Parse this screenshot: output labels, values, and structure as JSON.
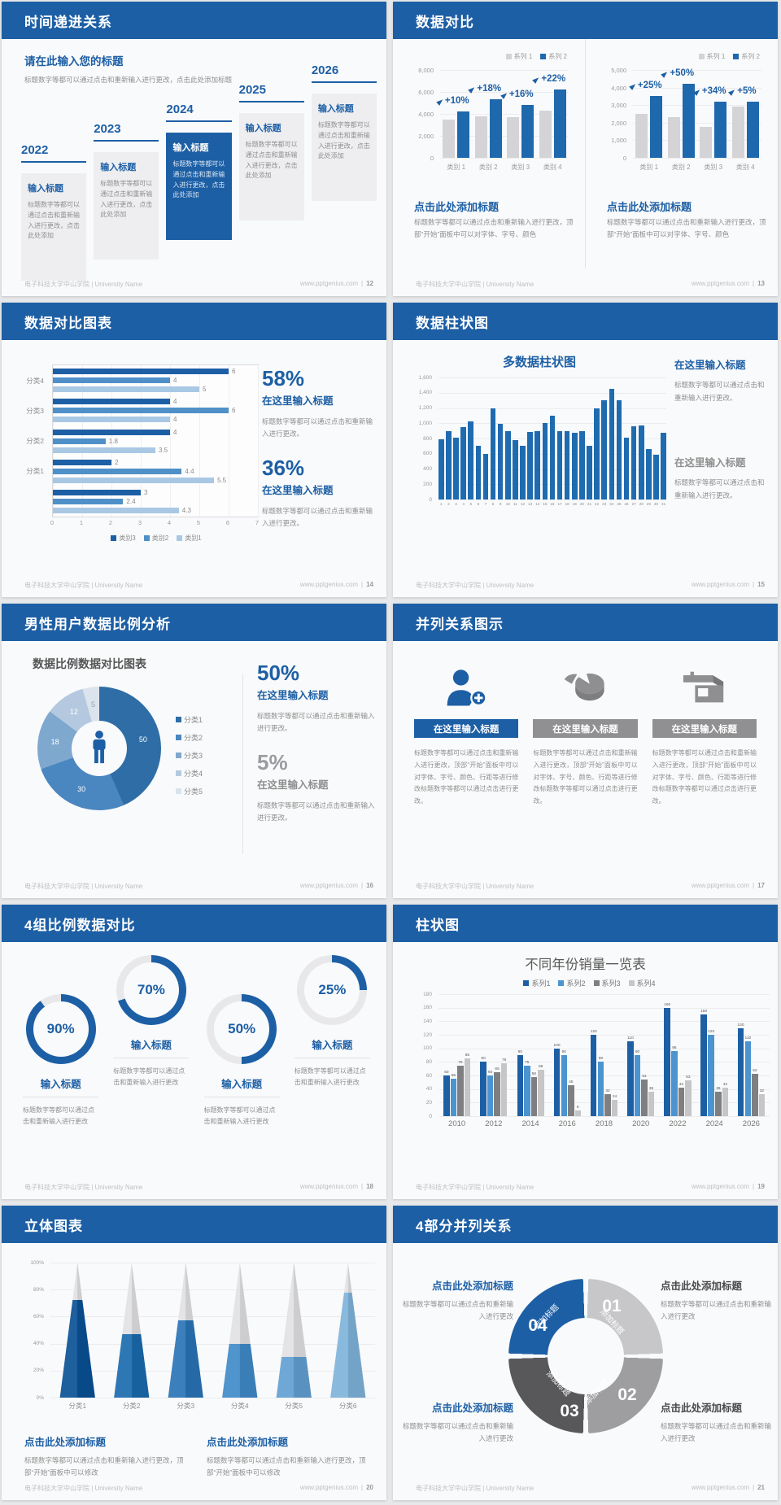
{
  "footer_left": "电子科技大学中山学院 | University Name",
  "footer_site": "www.pptgenius.com",
  "colors": {
    "header_blue": "#1d5fa5",
    "accent_blue": "#1e68ae",
    "bar_gray": "#d4d4d6",
    "text_gray": "#8f8f8f",
    "footer_gray": "#bfbfc2"
  },
  "slides": {
    "timeline": {
      "title": "时间递进关系",
      "page": "12",
      "intro_heading": "请在此输入您的标题",
      "intro_text": "标题数字等都可以通过点击和重新输入进行更改，点击此处添加标题",
      "box_title": "输入标题",
      "box_text": "标题数字等都可以通过点击和重新输入进行更改，点击此处添加",
      "years": [
        "2022",
        "2023",
        "2024",
        "2025",
        "2026"
      ],
      "highlight_index": 2
    },
    "compare": {
      "title": "数据对比",
      "page": "13",
      "block_heading": "点击此处添加标题",
      "block_text": "标题数字等都可以通过点击和重新输入进行更改，顶部“开始”面板中可以对字体、字号、颜色"
    },
    "hbar": {
      "title": "数据对比图表",
      "page": "14",
      "stats": [
        {
          "value": "58%",
          "label": "在这里输入标题",
          "text": "标题数字等都可以通过点击和重新输入进行更改。"
        },
        {
          "value": "36%",
          "label": "在这里输入标题",
          "text": "标题数字等都可以通过点击和重新输入进行更改。"
        }
      ]
    },
    "columns31": {
      "title": "数据柱状图",
      "page": "15",
      "blocks": [
        {
          "heading": "在这里输入标题",
          "text": "标题数字等都可以通过点击和重新输入进行更改。"
        },
        {
          "heading": "在这里输入标题",
          "text": "标题数字等都可以通过点击和重新输入进行更改。"
        }
      ]
    },
    "donut": {
      "title": "男性用户数据比例分析",
      "page": "16",
      "stats": [
        {
          "value": "50%",
          "label": "在这里输入标题",
          "text": "标题数字等都可以通过点击和重新输入进行更改。"
        },
        {
          "value": "5%",
          "label": "在这里输入标题",
          "text": "标题数字等都可以通过点击和重新输入进行更改。"
        }
      ]
    },
    "parallel3": {
      "title": "并列关系图示",
      "page": "17",
      "item_heading": "在这里输入标题",
      "item_text": "标题数字等都可以通过点击和重新输入进行更改，顶部“开始”面板中可以对字体、字号、颜色、行距等进行修改标题数字等都可以通过点击进行更改。",
      "icons": [
        "person-plus-icon",
        "pie-icon",
        "shop-icon"
      ]
    },
    "rings": {
      "title": "4组比例数据对比",
      "page": "18",
      "items": [
        {
          "pct_label": "90%",
          "heading": "输入标题",
          "text": "标题数字等都可以通过点击和重新输入进行更改"
        },
        {
          "pct_label": "70%",
          "heading": "输入标题",
          "text": "标题数字等都可以通过点击和重新输入进行更改"
        },
        {
          "pct_label": "50%",
          "heading": "输入标题",
          "text": "标题数字等都可以通过点击和重新输入进行更改"
        },
        {
          "pct_label": "25%",
          "heading": "输入标题",
          "text": "标题数字等都可以通过点击和重新输入进行更改"
        }
      ]
    },
    "grouped": {
      "title": "柱状图",
      "page": "19"
    },
    "pyramids": {
      "title": "立体图表",
      "page": "20",
      "blocks": [
        {
          "heading": "点击此处添加标题",
          "text": "标题数字等都可以通过点击和重新输入进行更改，顶部“开始”面板中可以修改"
        },
        {
          "heading": "点击此处添加标题",
          "text": "标题数字等都可以通过点击和重新输入进行更改，顶部“开始”面板中可以修改"
        }
      ]
    },
    "cycle4": {
      "title": "4部分并列关系",
      "page": "21",
      "numbers": [
        "01",
        "02",
        "03",
        "04"
      ],
      "segment_label": "添加标题",
      "blocks": [
        {
          "heading": "点击此处添加标题",
          "text": "标题数字等都可以通过点击和重新输入进行更改"
        },
        {
          "heading": "点击此处添加标题",
          "text": "标题数字等都可以通过点击和重新输入进行更改"
        },
        {
          "heading": "点击此处添加标题",
          "text": "标题数字等都可以通过点击和重新输入进行更改"
        },
        {
          "heading": "点击此处添加标题",
          "text": "标题数字等都可以通过点击和重新输入进行更改"
        }
      ]
    }
  },
  "chart_data": [
    {
      "id": "compare-left",
      "type": "bar",
      "categories": [
        "类别 1",
        "类别 2",
        "类别 3",
        "类别 4"
      ],
      "series": [
        {
          "name": "系列 1",
          "color": "#d4d4d6",
          "values": [
            3500,
            3800,
            3700,
            4300
          ]
        },
        {
          "name": "系列 2",
          "color": "#1e68ae",
          "values": [
            4200,
            5300,
            4800,
            6200
          ]
        }
      ],
      "annotations": [
        "+10%",
        "+18%",
        "+16%",
        "+22%"
      ],
      "ylim": [
        0,
        8000
      ],
      "yticks": [
        "8,000",
        "6,000",
        "4,000",
        "2,000",
        "0"
      ],
      "legend_position": "top-right"
    },
    {
      "id": "compare-right",
      "type": "bar",
      "categories": [
        "类别 1",
        "类别 2",
        "类别 3",
        "类别 4"
      ],
      "series": [
        {
          "name": "系列 1",
          "color": "#d4d4d6",
          "values": [
            2500,
            2300,
            1750,
            2900
          ]
        },
        {
          "name": "系列 2",
          "color": "#1e68ae",
          "values": [
            3500,
            4200,
            3200,
            3200
          ]
        }
      ],
      "annotations": [
        "+25%",
        "+50%",
        "+34%",
        "+5%"
      ],
      "ylim": [
        0,
        5000
      ],
      "yticks": [
        "5,000",
        "4,000",
        "3,000",
        "2,000",
        "1,000",
        "0"
      ],
      "legend_position": "top-right"
    },
    {
      "id": "hbar",
      "type": "bar",
      "orientation": "horizontal",
      "categories": [
        "分类4",
        "分类3",
        "分类2",
        "分类1",
        ""
      ],
      "series": [
        {
          "name": "类别3",
          "color": "#1d5fa5",
          "values": [
            6,
            4,
            4,
            2,
            3
          ]
        },
        {
          "name": "类别2",
          "color": "#4f90c8",
          "values": [
            4,
            6,
            1.8,
            4.4,
            2.4
          ]
        },
        {
          "name": "类别1",
          "color": "#a9c8e4",
          "values": [
            5,
            4,
            3.5,
            5.5,
            4.3
          ]
        }
      ],
      "xlim": [
        0,
        7
      ],
      "xticks": [
        "0",
        "1",
        "2",
        "3",
        "4",
        "5",
        "6",
        "7"
      ],
      "legend_position": "bottom"
    },
    {
      "id": "columns31",
      "type": "bar",
      "title": "多数据柱状图",
      "color": "#1e6bb0",
      "xticks": [
        "1",
        "2",
        "3",
        "4",
        "5",
        "6",
        "7",
        "8",
        "9",
        "10",
        "11",
        "12",
        "13",
        "14",
        "15",
        "16",
        "17",
        "18",
        "19",
        "20",
        "21",
        "22",
        "23",
        "24",
        "25",
        "26",
        "27",
        "28",
        "29",
        "30",
        "31"
      ],
      "values": [
        790,
        900,
        810,
        950,
        1020,
        700,
        600,
        1200,
        990,
        900,
        780,
        700,
        890,
        900,
        1000,
        1100,
        900,
        900,
        880,
        900,
        700,
        1200,
        1300,
        1450,
        1300,
        810,
        960,
        970,
        660,
        590,
        870
      ],
      "ylim": [
        0,
        1600
      ],
      "yticks": [
        "1,600",
        "1,400",
        "1,200",
        "1,000",
        "800",
        "600",
        "400",
        "200",
        "0"
      ]
    },
    {
      "id": "donut",
      "type": "pie",
      "title": "数据比例数据对比图表",
      "labels": [
        "分类1",
        "分类2",
        "分类3",
        "分类4",
        "分类5"
      ],
      "values": [
        50,
        30,
        18,
        12,
        5
      ],
      "colors": [
        "#2e6da6",
        "#4a86c0",
        "#7fa8cf",
        "#b4c9e0",
        "#dbe3ec"
      ],
      "label_colors": [
        "#ffffff",
        "#ffffff",
        "#ffffff",
        "#ffffff",
        "#98a3ae"
      ],
      "center_icon": "male-person-icon",
      "legend_position": "right"
    },
    {
      "id": "rings",
      "type": "donut-progress",
      "values": [
        90,
        70,
        50,
        25
      ],
      "accent": "#1d5fa5",
      "track": "#e8e8ea"
    },
    {
      "id": "grouped",
      "type": "bar",
      "title": "不同年份销量一览表",
      "categories": [
        "2010",
        "2012",
        "2014",
        "2016",
        "2018",
        "2020",
        "2022",
        "2024",
        "2026"
      ],
      "series": [
        {
          "name": "系列1",
          "color": "#1d5fa5",
          "values": [
            60,
            80,
            90,
            100,
            120,
            110,
            160,
            150,
            130
          ]
        },
        {
          "name": "系列2",
          "color": "#4b94d0",
          "values": [
            55,
            60,
            75,
            90,
            80,
            90,
            96,
            120,
            110
          ]
        },
        {
          "name": "系列3",
          "color": "#7f7f82",
          "values": [
            75,
            65,
            58,
            46,
            32,
            54,
            42,
            36,
            62
          ]
        },
        {
          "name": "系列4",
          "color": "#c6c6c8",
          "values": [
            85,
            78,
            68,
            9,
            24,
            36,
            53,
            42,
            32
          ]
        }
      ],
      "ylim": [
        0,
        180
      ],
      "yticks": [
        "180",
        "160",
        "140",
        "120",
        "100",
        "80",
        "60",
        "40",
        "20",
        "0"
      ],
      "legend_position": "top"
    },
    {
      "id": "pyramids",
      "type": "pyramid",
      "categories": [
        "分类1",
        "分类2",
        "分类3",
        "分类4",
        "分类5",
        "分类6"
      ],
      "fill_pct": [
        72,
        47,
        57,
        40,
        30,
        78
      ],
      "colors": [
        "#1e5f9e",
        "#2e77b5",
        "#3b80bc",
        "#4f94cd",
        "#6fa8d6",
        "#8ab9de"
      ],
      "yticks": [
        "100%",
        "80%",
        "60%",
        "40%",
        "20%",
        "0%"
      ]
    },
    {
      "id": "cycle",
      "type": "cycle-diagram",
      "segments": [
        "01",
        "02",
        "03",
        "04"
      ],
      "segment_label": "添加标题",
      "colors": [
        "#c7c7c9",
        "#9e9ea0",
        "#58585a",
        "#1d5fa5"
      ]
    }
  ]
}
